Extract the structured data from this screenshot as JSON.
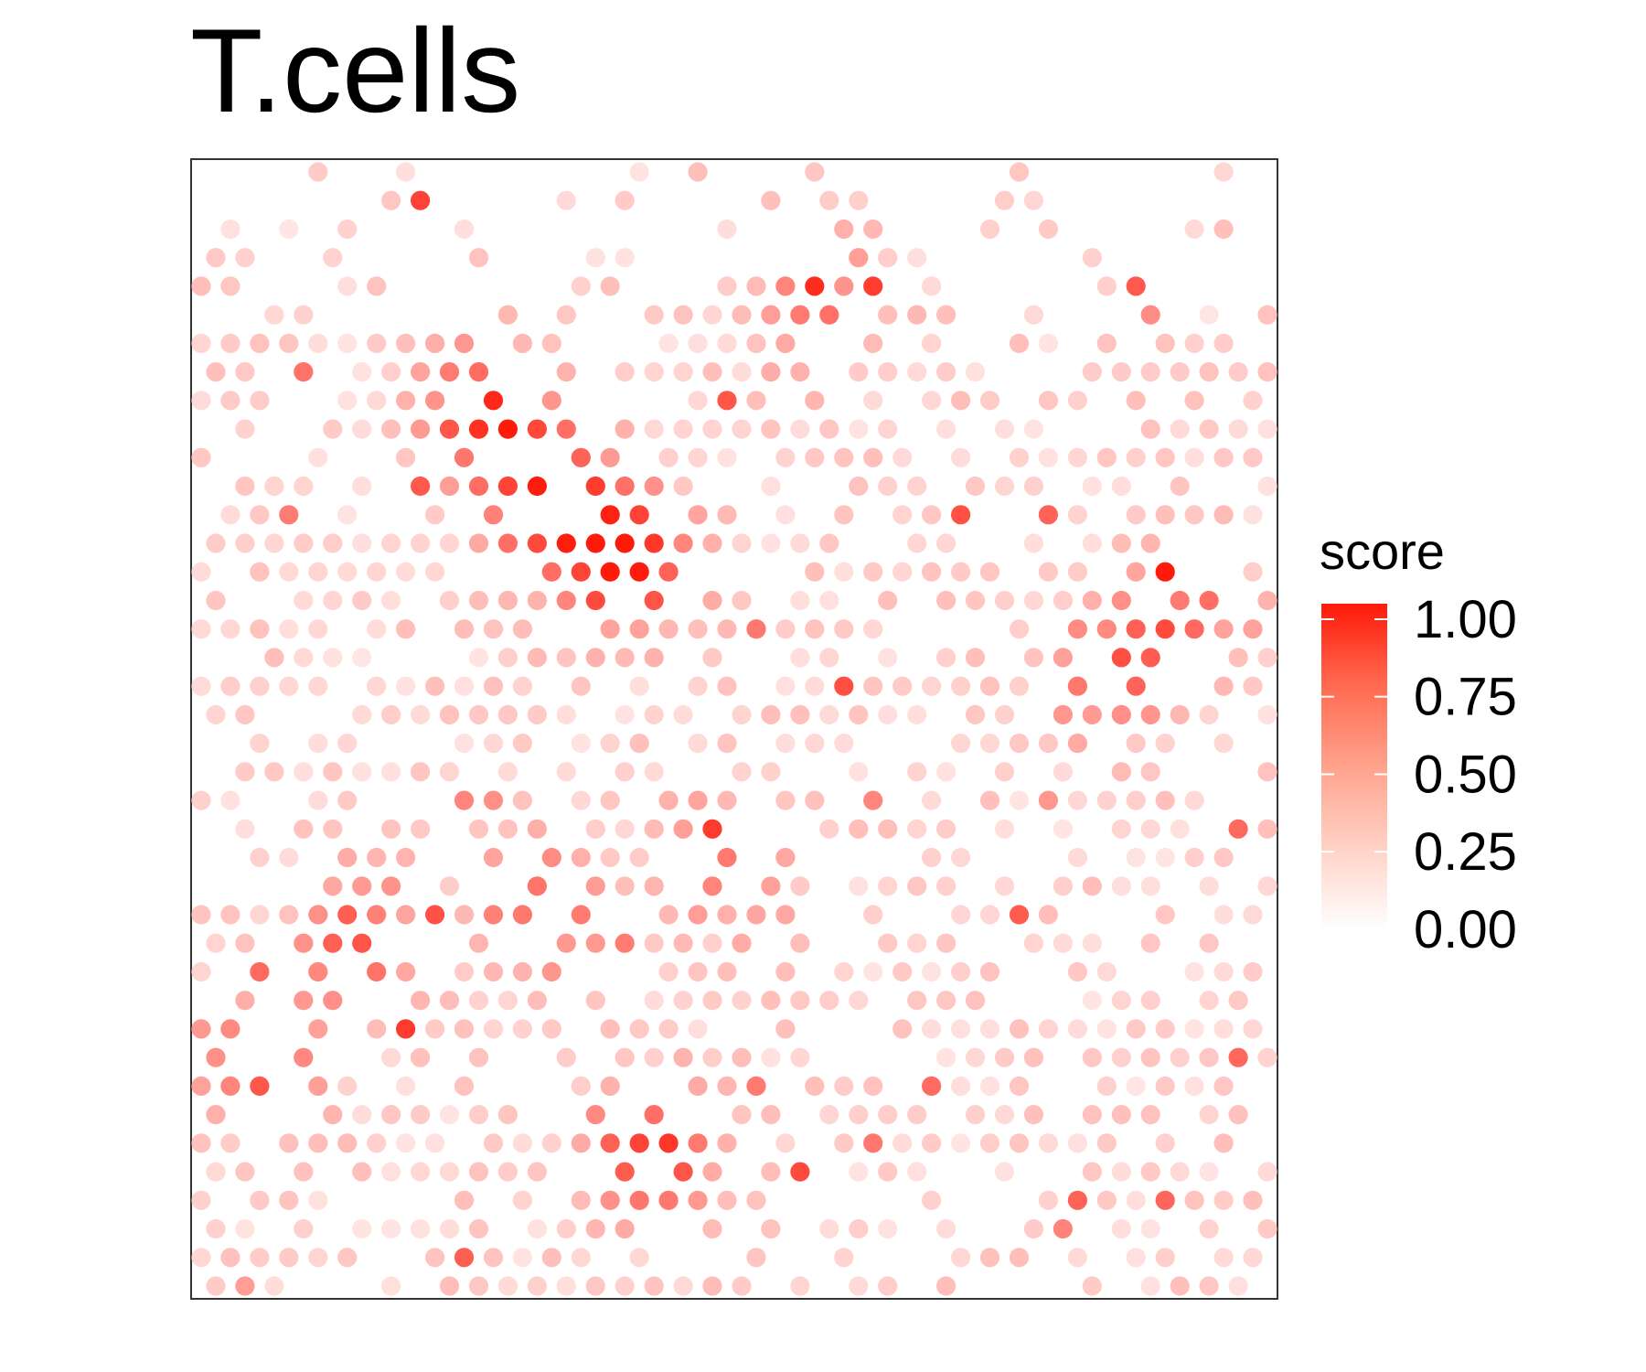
{
  "chart_data": {
    "type": "scatter",
    "title": "T.cells",
    "xlabel": "",
    "ylabel": "",
    "grid": false,
    "legend": {
      "title": "score",
      "placement": "right",
      "type": "colorbar",
      "ticks": [
        "1.00",
        "0.75",
        "0.50",
        "0.25",
        "0.00"
      ],
      "tick_values": [
        1.0,
        0.75,
        0.5,
        0.25,
        0.0
      ],
      "range": [
        0,
        1.05
      ]
    },
    "colors": {
      "low": "#ffffff",
      "high": "#ff1a0a",
      "border": "#333333"
    },
    "point_grid": {
      "cols": 37,
      "rows": 40,
      "seed": 17
    },
    "hotspots": [
      {
        "x": 0.4,
        "y": 0.35,
        "score": 0.85
      },
      {
        "x": 0.33,
        "y": 0.3,
        "score": 0.8
      },
      {
        "x": 0.27,
        "y": 0.22,
        "score": 0.75
      },
      {
        "x": 0.15,
        "y": 0.69,
        "score": 0.55
      },
      {
        "x": 0.32,
        "y": 0.66,
        "score": 0.55
      },
      {
        "x": 0.42,
        "y": 0.88,
        "score": 0.7
      },
      {
        "x": 0.05,
        "y": 0.8,
        "score": 0.55
      },
      {
        "x": 0.58,
        "y": 0.12,
        "score": 0.45
      },
      {
        "x": 0.85,
        "y": 0.45,
        "score": 0.45
      },
      {
        "x": 0.92,
        "y": 0.4,
        "score": 0.45
      },
      {
        "x": 0.5,
        "y": 0.62,
        "score": 0.4
      }
    ]
  }
}
